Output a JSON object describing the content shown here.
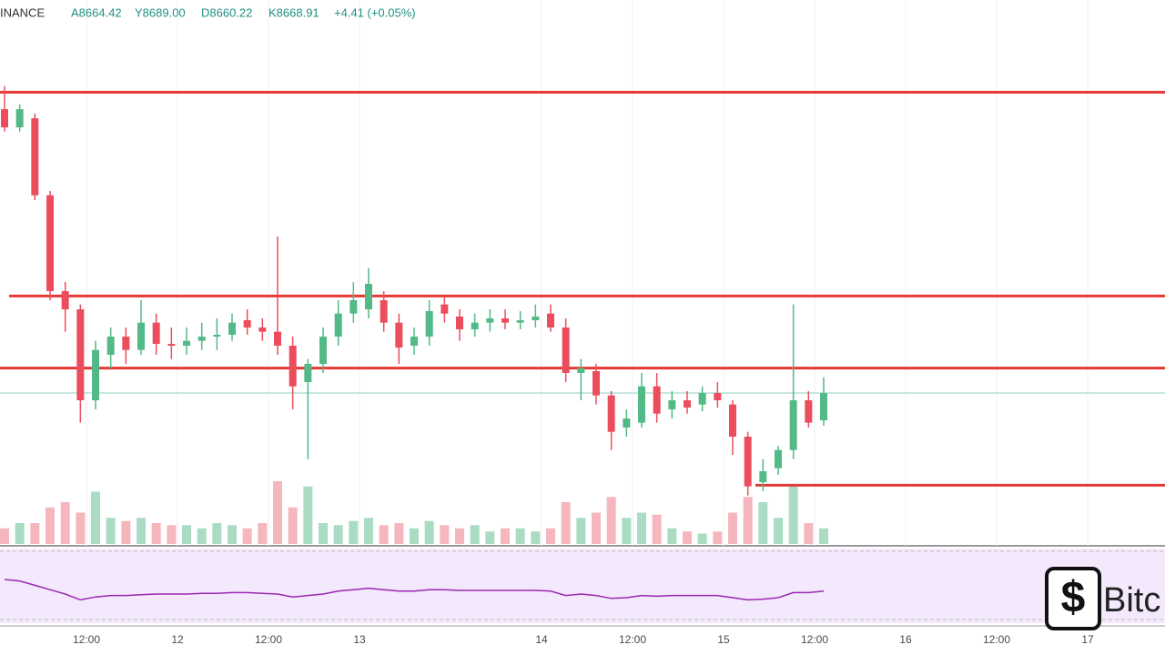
{
  "chart_data": {
    "type": "candlestick",
    "symbol": "INANCE",
    "header": [
      "A8664.42",
      "Y8689.00",
      "D8660.22",
      "K8668.91",
      "+4.41 (+0.05%)"
    ],
    "watermark": "Bitc",
    "x": [
      1.2,
      3.2,
      5.2,
      7.2,
      9.2,
      11.2,
      13.2,
      15.2,
      17.2,
      19.2,
      21.2,
      23.2,
      25.2,
      27.2,
      29.2,
      31.2,
      33.2,
      35.2,
      37.2,
      39.2,
      41.2,
      43.2,
      45.2,
      47.2,
      49.2,
      51.2,
      53.2,
      55.2,
      57.2,
      59.2,
      61.2,
      63.2,
      65.2,
      67.2,
      69.2,
      71.2,
      73.2,
      75.2,
      77.2,
      79.2,
      81.2,
      83.2,
      85.2,
      87.2,
      89.2,
      91.2,
      93.2,
      95.2,
      97.2,
      99.2,
      101.2,
      103.2,
      105.2,
      107.2,
      109.2
    ],
    "open": [
      9137,
      9107,
      9122,
      8995,
      8837,
      8807,
      8657,
      8732,
      8762,
      8740,
      8785,
      8750,
      8747,
      8755,
      8762,
      8765,
      8789,
      8777,
      8770,
      8747,
      8687,
      8717,
      8762,
      8800,
      8807,
      8822,
      8785,
      8747,
      8762,
      8815,
      8795,
      8774,
      8785,
      8792,
      8785,
      8789,
      8800,
      8777,
      8702,
      8705,
      8665,
      8612,
      8620,
      8680,
      8642,
      8657,
      8650,
      8669,
      8650,
      8597,
      8522,
      8545,
      8575,
      8657,
      8624
    ],
    "high": [
      9175,
      9145,
      9130,
      9002,
      8852,
      8815,
      8755,
      8777,
      8777,
      8822,
      8800,
      8777,
      8777,
      8785,
      8792,
      8800,
      8807,
      8792,
      8927,
      8762,
      8725,
      8777,
      8822,
      8852,
      8875,
      8837,
      8800,
      8777,
      8822,
      8830,
      8807,
      8800,
      8807,
      8807,
      8804,
      8815,
      8815,
      8792,
      8725,
      8717,
      8672,
      8642,
      8702,
      8702,
      8672,
      8672,
      8680,
      8687,
      8657,
      8605,
      8560,
      8582,
      8815,
      8672,
      8695
    ],
    "low": [
      9100,
      9100,
      8987,
      8822,
      8770,
      8620,
      8642,
      8710,
      8717,
      8732,
      8732,
      8725,
      8732,
      8740,
      8740,
      8755,
      8765,
      8755,
      8732,
      8642,
      8560,
      8702,
      8747,
      8785,
      8792,
      8770,
      8717,
      8732,
      8747,
      8785,
      8755,
      8762,
      8770,
      8774,
      8774,
      8777,
      8770,
      8687,
      8657,
      8650,
      8575,
      8597,
      8612,
      8620,
      8627,
      8635,
      8639,
      8645,
      8567,
      8500,
      8507,
      8534,
      8560,
      8612,
      8615
    ],
    "close": [
      9107,
      9137,
      8995,
      8837,
      8807,
      8657,
      8740,
      8762,
      8740,
      8785,
      8750,
      8747,
      8755,
      8762,
      8765,
      8785,
      8777,
      8770,
      8747,
      8680,
      8717,
      8762,
      8800,
      8822,
      8849,
      8785,
      8744,
      8762,
      8804,
      8800,
      8774,
      8785,
      8792,
      8785,
      8789,
      8795,
      8777,
      8702,
      8710,
      8665,
      8605,
      8627,
      8680,
      8635,
      8657,
      8645,
      8669,
      8657,
      8597,
      8515,
      8540,
      8575,
      8657,
      8620,
      8669
    ],
    "volume": [
      15,
      20,
      20,
      35,
      40,
      30,
      50,
      25,
      22,
      25,
      20,
      18,
      18,
      15,
      20,
      18,
      15,
      20,
      60,
      35,
      55,
      20,
      18,
      22,
      25,
      18,
      20,
      15,
      22,
      18,
      15,
      18,
      12,
      15,
      15,
      12,
      15,
      40,
      25,
      30,
      45,
      25,
      30,
      28,
      15,
      12,
      10,
      12,
      30,
      45,
      40,
      25,
      55,
      20,
      15
    ],
    "rsi": [
      60,
      58,
      52,
      46,
      40,
      32,
      36,
      38,
      38,
      39,
      40,
      40,
      40,
      41,
      41,
      42,
      42,
      41,
      40,
      36,
      38,
      40,
      44,
      46,
      48,
      46,
      44,
      44,
      46,
      46,
      45,
      45,
      45,
      45,
      45,
      45,
      44,
      38,
      40,
      38,
      34,
      35,
      38,
      37,
      38,
      38,
      38,
      38,
      35,
      32,
      33,
      35,
      42,
      42,
      44
    ],
    "levels": [
      9165,
      8829,
      8710,
      8517
    ],
    "level_color": "#e53935",
    "up_color": "#53b987",
    "down_color": "#eb4d5c",
    "rsi_color": "#9c27b0",
    "xlim": [
      0.6,
      154.2
    ],
    "ylim": [
      8417,
      9317
    ],
    "volume_lim": [
      0,
      100
    ],
    "rsi_lim": [
      0,
      100
    ],
    "xticks": [
      {
        "value": 12,
        "label": "12:00"
      },
      {
        "value": 24,
        "label": "12"
      },
      {
        "value": 36,
        "label": "12:00"
      },
      {
        "value": 48,
        "label": "13"
      },
      {
        "value": 72,
        "label": "14"
      },
      {
        "value": 84,
        "label": "12:00"
      },
      {
        "value": 96,
        "label": "15"
      },
      {
        "value": 108,
        "label": "12:00"
      },
      {
        "value": 120,
        "label": "16"
      },
      {
        "value": 132,
        "label": "12:00"
      },
      {
        "value": 144,
        "label": "17"
      }
    ],
    "grid": true
  }
}
